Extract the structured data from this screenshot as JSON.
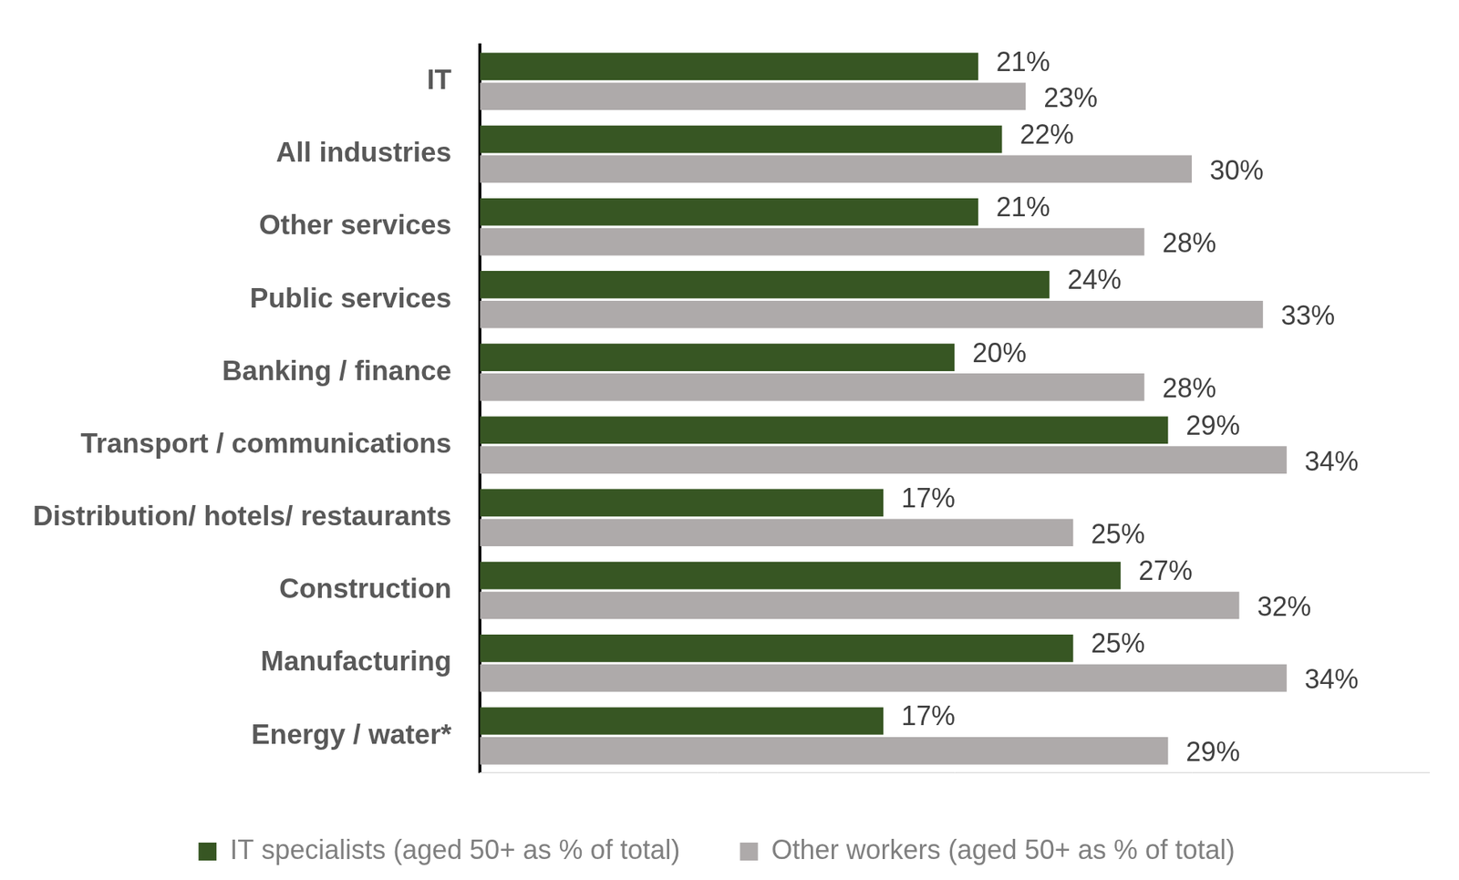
{
  "chart_data": {
    "type": "bar",
    "orientation": "horizontal",
    "categories": [
      "IT",
      "All industries",
      "Other services",
      "Public services",
      "Banking / finance",
      "Transport / communications",
      "Distribution/ hotels/ restaurants",
      "Construction",
      "Manufacturing",
      "Energy / water*"
    ],
    "series": [
      {
        "name": "IT specialists (aged 50+ as % of total)",
        "color": "#375623",
        "values": [
          21,
          22,
          21,
          24,
          20,
          29,
          17,
          27,
          25,
          17
        ],
        "value_labels": [
          "21%",
          "22%",
          "21%",
          "24%",
          "20%",
          "29%",
          "17%",
          "27%",
          "25%",
          "17%"
        ]
      },
      {
        "name": "Other workers (aged 50+ as % of total)",
        "color": "#aeaaaa",
        "values": [
          23,
          30,
          28,
          33,
          28,
          34,
          25,
          32,
          34,
          29
        ],
        "value_labels": [
          "23%",
          "30%",
          "28%",
          "33%",
          "28%",
          "34%",
          "25%",
          "32%",
          "34%",
          "29%"
        ]
      }
    ],
    "xlim": [
      0,
      40
    ],
    "grid": false,
    "legend": "bottom",
    "data_labels": true,
    "tick_labels": "y"
  }
}
